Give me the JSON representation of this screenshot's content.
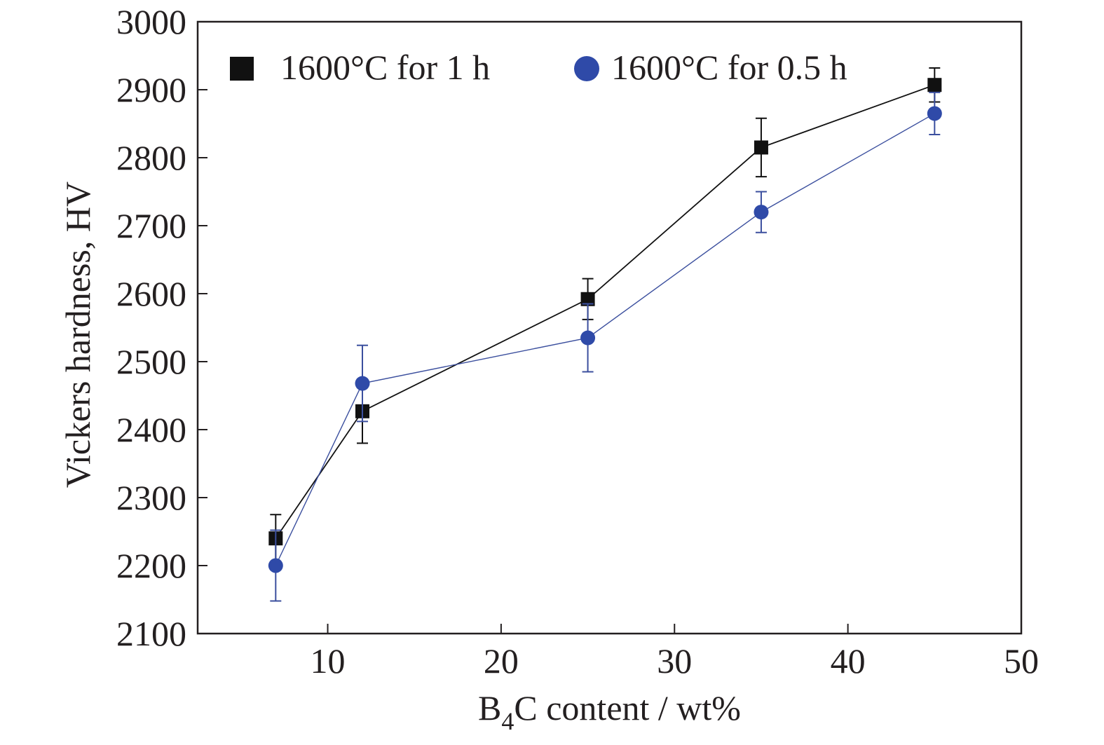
{
  "chart_data": {
    "type": "line",
    "xlabel_main": "B",
    "xlabel_sub": "4",
    "xlabel_rest": "C content / wt%",
    "ylabel": "Vickers hardness, HV",
    "xlim": [
      2.5,
      50
    ],
    "ylim": [
      2100,
      3000
    ],
    "xticks": [
      10,
      20,
      30,
      40,
      50
    ],
    "yticks": [
      2100,
      2200,
      2300,
      2400,
      2500,
      2600,
      2700,
      2800,
      2900,
      3000
    ],
    "legend_position": "top",
    "series": [
      {
        "name": "1600°C  for 1 h",
        "marker": "square",
        "color": "#111111",
        "line_color": "#111111",
        "x": [
          7,
          12,
          25,
          35,
          45
        ],
        "y": [
          2240,
          2427,
          2592,
          2815,
          2907
        ],
        "err": [
          35,
          47,
          30,
          43,
          25
        ]
      },
      {
        "name": "1600°C  for 0.5 h",
        "marker": "circle",
        "color": "#2f4aa8",
        "line_color": "#3b4f9e",
        "x": [
          7,
          12,
          25,
          35,
          45
        ],
        "y": [
          2200,
          2468,
          2535,
          2720,
          2865
        ],
        "err": [
          52,
          56,
          50,
          30,
          31
        ]
      }
    ]
  }
}
